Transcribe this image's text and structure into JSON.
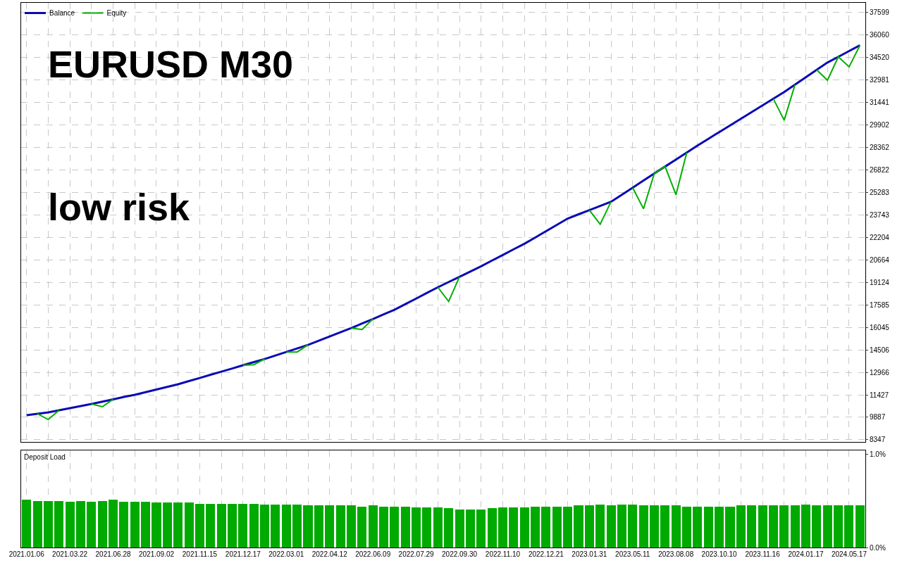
{
  "chart_data": [
    {
      "type": "line",
      "annotations": [
        "EURUSD M30",
        "low risk"
      ],
      "legend": "top left",
      "grid": true,
      "tick_labels": "y",
      "categories": [
        "2021.01.06",
        null,
        null,
        null,
        "2021.03.22",
        null,
        null,
        null,
        "2021.06.28",
        null,
        null,
        null,
        "2021.09.02",
        null,
        null,
        null,
        "2021.11.15",
        null,
        null,
        null,
        "2021.12.17",
        null,
        null,
        null,
        "2022.03.01",
        null,
        null,
        null,
        "2022.04.12",
        null,
        null,
        null,
        "2022.06.09",
        null,
        null,
        null,
        "2022.07.29",
        null,
        null,
        null,
        "2022.09.30",
        null,
        null,
        null,
        "2022.11.10",
        null,
        null,
        null,
        "2022.12.21",
        null,
        null,
        null,
        "2023.01.31",
        null,
        null,
        null,
        "2023.05.11",
        null,
        null,
        null,
        "2023.08.08",
        null,
        null,
        null,
        "2023.10.10",
        null,
        null,
        null,
        "2023.11.16",
        null,
        null,
        null,
        "2024.01.17",
        null,
        null,
        null,
        "2024.05.17",
        null
      ],
      "ylim": [
        8200,
        38270
      ],
      "yticks": [
        8347,
        9887,
        11427,
        12966,
        14506,
        16045,
        17585,
        19124,
        20664,
        22204,
        23743,
        25283,
        26822,
        28362,
        29902,
        31441,
        32981,
        34520,
        36060,
        37599
      ],
      "series": [
        {
          "name": "Balance",
          "color": "#0a0ab4",
          "values": [
            10030,
            10130,
            10220,
            10370,
            10510,
            10660,
            10800,
            10960,
            11120,
            11280,
            11430,
            11610,
            11790,
            11970,
            12150,
            12370,
            12580,
            12800,
            13010,
            13230,
            13450,
            13670,
            13880,
            14120,
            14360,
            14600,
            14840,
            15130,
            15420,
            15710,
            16000,
            16310,
            16620,
            16940,
            17250,
            17640,
            18020,
            18410,
            18790,
            19150,
            19510,
            19870,
            20230,
            20620,
            21000,
            21390,
            21770,
            22200,
            22630,
            23070,
            23500,
            23790,
            24070,
            24360,
            24650,
            25130,
            25610,
            26100,
            26580,
            27060,
            27540,
            28020,
            28500,
            28960,
            29420,
            29870,
            30330,
            30790,
            31250,
            31700,
            32160,
            32670,
            33170,
            33680,
            34180,
            34570,
            34970,
            35360
          ]
        },
        {
          "name": "Equity",
          "color": "#00b000",
          "values": [
            null,
            10130,
            9740,
            10370,
            null,
            null,
            10800,
            10610,
            11120,
            null,
            null,
            null,
            null,
            null,
            null,
            null,
            null,
            null,
            null,
            null,
            13450,
            13490,
            13880,
            null,
            14360,
            14360,
            14840,
            null,
            null,
            null,
            16000,
            15900,
            16620,
            null,
            null,
            null,
            null,
            null,
            18790,
            17820,
            19510,
            null,
            null,
            null,
            null,
            null,
            null,
            null,
            null,
            null,
            null,
            null,
            24070,
            23110,
            24650,
            null,
            25610,
            24170,
            26580,
            27060,
            25130,
            28020,
            null,
            null,
            null,
            null,
            null,
            null,
            null,
            31700,
            30230,
            32670,
            null,
            33680,
            32970,
            34570,
            33890,
            35360
          ]
        }
      ]
    },
    {
      "type": "bar",
      "title": "Deposit Load",
      "color": "#00aa00",
      "grid": "x",
      "categories": [
        "2021.01.06",
        null,
        null,
        null,
        "2021.03.22",
        null,
        null,
        null,
        "2021.06.28",
        null,
        null,
        null,
        "2021.09.02",
        null,
        null,
        null,
        "2021.11.15",
        null,
        null,
        null,
        "2021.12.17",
        null,
        null,
        null,
        "2022.03.01",
        null,
        null,
        null,
        "2022.04.12",
        null,
        null,
        null,
        "2022.06.09",
        null,
        null,
        null,
        "2022.07.29",
        null,
        null,
        null,
        "2022.09.30",
        null,
        null,
        null,
        "2022.11.10",
        null,
        null,
        null,
        "2022.12.21",
        null,
        null,
        null,
        "2023.01.31",
        null,
        null,
        null,
        "2023.05.11",
        null,
        null,
        null,
        "2023.08.08",
        null,
        null,
        null,
        "2023.10.10",
        null,
        null,
        null,
        "2023.11.16",
        null,
        null,
        null,
        "2024.01.17",
        null,
        null,
        null,
        "2024.05.17",
        null
      ],
      "ylim": [
        0,
        1.04
      ],
      "yticks": [
        {
          "value": 0,
          "label": "0.0%"
        },
        {
          "value": 1,
          "label": "1.0%"
        }
      ],
      "values": [
        0.51,
        0.5,
        0.5,
        0.5,
        0.49,
        0.5,
        0.49,
        0.5,
        0.51,
        0.49,
        0.49,
        0.49,
        0.48,
        0.48,
        0.48,
        0.48,
        0.47,
        0.47,
        0.47,
        0.47,
        0.47,
        0.47,
        0.46,
        0.46,
        0.46,
        0.46,
        0.45,
        0.45,
        0.45,
        0.45,
        0.45,
        0.44,
        0.45,
        0.44,
        0.44,
        0.44,
        0.43,
        0.43,
        0.43,
        0.42,
        0.41,
        0.41,
        0.41,
        0.42,
        0.43,
        0.43,
        0.43,
        0.44,
        0.44,
        0.44,
        0.44,
        0.45,
        0.45,
        0.46,
        0.45,
        0.46,
        0.46,
        0.45,
        0.45,
        0.45,
        0.45,
        0.44,
        0.44,
        0.44,
        0.44,
        0.44,
        0.45,
        0.45,
        0.45,
        0.45,
        0.45,
        0.45,
        0.46,
        0.45,
        0.45,
        0.45,
        0.45,
        0.45
      ]
    }
  ]
}
